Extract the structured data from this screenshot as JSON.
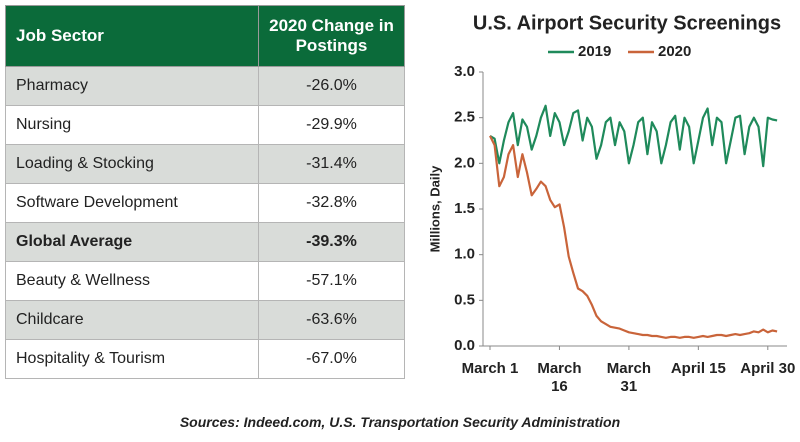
{
  "table": {
    "header": [
      "Job Sector",
      "2020 Change in Postings"
    ],
    "rows": [
      [
        "Pharmacy",
        "-26.0%"
      ],
      [
        "Nursing",
        "-29.9%"
      ],
      [
        "Loading & Stocking",
        "-31.4%"
      ],
      [
        "Software Development",
        "-32.8%"
      ],
      [
        "Global Average",
        "-39.3%"
      ],
      [
        "Beauty & Wellness",
        "-57.1%"
      ],
      [
        "Childcare",
        "-63.6%"
      ],
      [
        "Hospitality & Tourism",
        "-67.0%"
      ]
    ]
  },
  "chart_data": {
    "type": "line",
    "title": "U.S. Airport Security Screenings",
    "y_label": "Millions, Daily",
    "categories": [
      "March 1",
      null,
      null,
      null,
      null,
      null,
      null,
      null,
      null,
      null,
      null,
      null,
      null,
      null,
      null,
      "March 16",
      null,
      null,
      null,
      null,
      null,
      null,
      null,
      null,
      null,
      null,
      null,
      null,
      null,
      null,
      "March 31",
      null,
      null,
      null,
      null,
      null,
      null,
      null,
      null,
      null,
      null,
      null,
      null,
      null,
      null,
      "April 15",
      null,
      null,
      null,
      null,
      null,
      null,
      null,
      null,
      null,
      null,
      null,
      null,
      null,
      null,
      "April 30",
      null,
      null
    ],
    "series": [
      {
        "name": "2019",
        "color": "#1f8a5b",
        "values": [
          2.3,
          2.27,
          2.0,
          2.25,
          2.45,
          2.55,
          2.2,
          2.48,
          2.4,
          2.15,
          2.3,
          2.5,
          2.63,
          2.3,
          2.55,
          2.45,
          2.2,
          2.35,
          2.55,
          2.58,
          2.25,
          2.5,
          2.4,
          2.05,
          2.2,
          2.45,
          2.5,
          2.2,
          2.45,
          2.35,
          2.0,
          2.2,
          2.45,
          2.5,
          2.1,
          2.45,
          2.35,
          2.0,
          2.2,
          2.45,
          2.52,
          2.15,
          2.5,
          2.4,
          2.0,
          2.25,
          2.5,
          2.6,
          2.2,
          2.5,
          2.45,
          2.0,
          2.25,
          2.5,
          2.52,
          2.1,
          2.4,
          2.5,
          2.4,
          1.97,
          2.5,
          2.48,
          2.47
        ]
      },
      {
        "name": "2020",
        "color": "#c9643a",
        "values": [
          2.3,
          2.2,
          1.75,
          1.85,
          2.1,
          2.2,
          1.85,
          2.1,
          1.9,
          1.65,
          1.72,
          1.8,
          1.75,
          1.6,
          1.52,
          1.55,
          1.3,
          0.98,
          0.8,
          0.63,
          0.6,
          0.55,
          0.45,
          0.33,
          0.27,
          0.24,
          0.21,
          0.2,
          0.19,
          0.17,
          0.15,
          0.14,
          0.13,
          0.12,
          0.12,
          0.11,
          0.11,
          0.1,
          0.09,
          0.1,
          0.1,
          0.09,
          0.1,
          0.1,
          0.09,
          0.1,
          0.11,
          0.1,
          0.11,
          0.12,
          0.12,
          0.11,
          0.12,
          0.13,
          0.12,
          0.13,
          0.14,
          0.16,
          0.15,
          0.18,
          0.15,
          0.17,
          0.16
        ]
      }
    ],
    "ylim": [
      0,
      3
    ],
    "yticks": [
      {
        "value": 0,
        "label": "0.0"
      },
      0.5,
      {
        "value": 1,
        "label": "1.0"
      },
      1.5,
      {
        "value": 2,
        "label": "2.0"
      },
      2.5,
      {
        "value": 3,
        "label": "3.0"
      }
    ],
    "legend": "top",
    "grid": false
  },
  "source": "Sources: Indeed.com, U.S. Transportation Security Administration"
}
